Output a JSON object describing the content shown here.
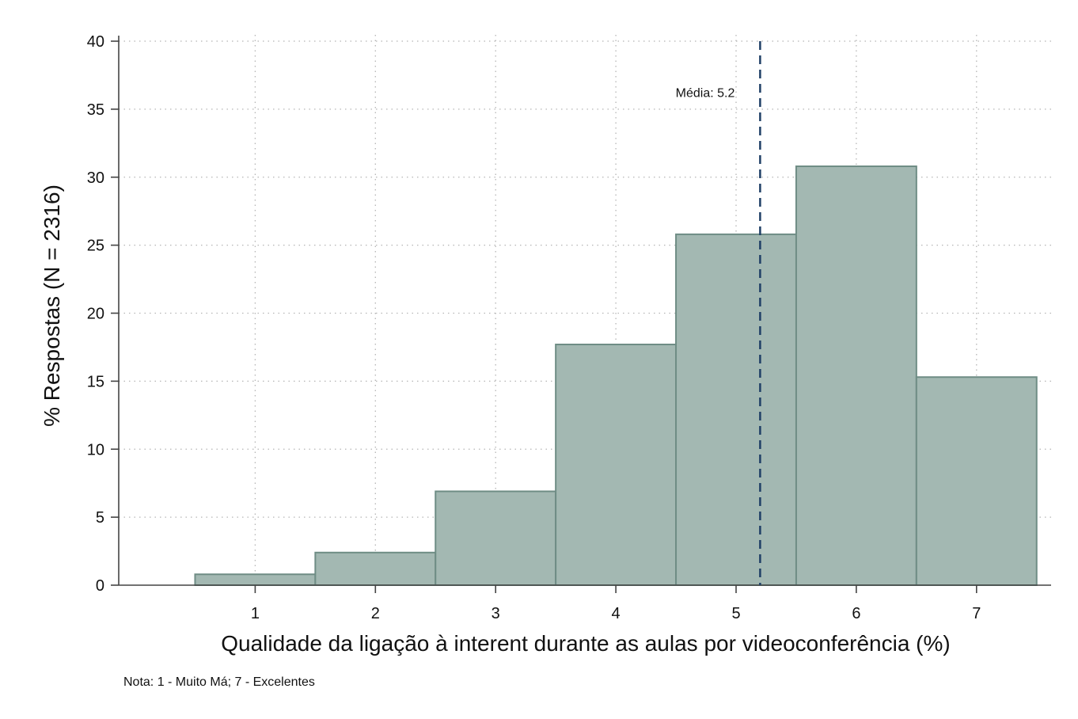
{
  "chart_data": {
    "type": "bar",
    "categories": [
      "1",
      "2",
      "3",
      "4",
      "5",
      "6",
      "7"
    ],
    "values": [
      0.8,
      2.4,
      6.9,
      17.7,
      25.8,
      30.8,
      15.3
    ],
    "xlabel": "Qualidade da ligação à interent durante as aulas por videoconferência (%)",
    "ylabel": "% Respostas (N = 2316)",
    "xlim": [
      0,
      7.5
    ],
    "ylim": [
      0,
      40
    ],
    "xticks": [
      1,
      2,
      3,
      4,
      5,
      6,
      7
    ],
    "yticks": [
      0,
      5,
      10,
      15,
      20,
      25,
      30,
      35,
      40
    ],
    "grid": true,
    "colors": {
      "bar_fill": "#a3b8b2",
      "bar_stroke": "#6f8d85",
      "mean_line": "#1f3f66"
    },
    "mean": {
      "value": 5.2,
      "label": "Média: 5.2"
    },
    "note": "Nota: 1 - Muito Má; 7 - Excelentes"
  }
}
